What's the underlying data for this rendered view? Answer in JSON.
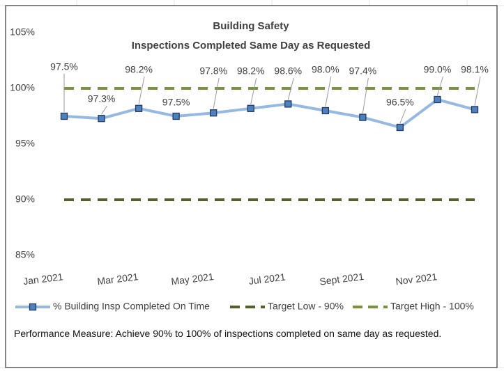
{
  "chart_data": {
    "type": "line",
    "title": "Building Safety",
    "subtitle": "Inspections Completed Same Day as Requested",
    "categories": [
      "Jan 2021",
      null,
      "Mar 2021",
      null,
      "May 2021",
      null,
      "Jul 2021",
      null,
      "Sept 2021",
      null,
      "Nov 2021",
      null
    ],
    "series": [
      {
        "name": "% Building Insp Completed On Time",
        "color": "#95b9e3",
        "marker_color": "#4f81bd",
        "values": [
          97.5,
          97.3,
          98.2,
          97.5,
          97.8,
          98.2,
          98.6,
          98.0,
          97.4,
          96.5,
          99.0,
          98.1
        ],
        "value_labels": [
          "97.5%",
          "97.3%",
          "98.2%",
          "97.5%",
          "97.8%",
          "98.2%",
          "98.6%",
          "98.0%",
          "97.4%",
          "96.5%",
          "99.0%",
          "98.1%"
        ]
      },
      {
        "name": "Target Low - 90%",
        "color": "#4f6228",
        "dashed": true,
        "values": [
          90,
          90,
          90,
          90,
          90,
          90,
          90,
          90,
          90,
          90,
          90,
          90
        ]
      },
      {
        "name": "Target High - 100%",
        "color": "#77933c",
        "dashed": true,
        "values": [
          100,
          100,
          100,
          100,
          100,
          100,
          100,
          100,
          100,
          100,
          100,
          100
        ]
      }
    ],
    "ylim": [
      85,
      105
    ],
    "yticks": [
      {
        "value": 85,
        "label": "85%"
      },
      {
        "value": 90,
        "label": "90%"
      },
      {
        "value": 95,
        "label": "95%"
      },
      {
        "value": 100,
        "label": "100%"
      },
      {
        "value": 105,
        "label": "105%"
      }
    ],
    "legend": "bottom",
    "note": "Performance Measure: Achieve 90% to 100% of inspections completed on same day as requested."
  }
}
